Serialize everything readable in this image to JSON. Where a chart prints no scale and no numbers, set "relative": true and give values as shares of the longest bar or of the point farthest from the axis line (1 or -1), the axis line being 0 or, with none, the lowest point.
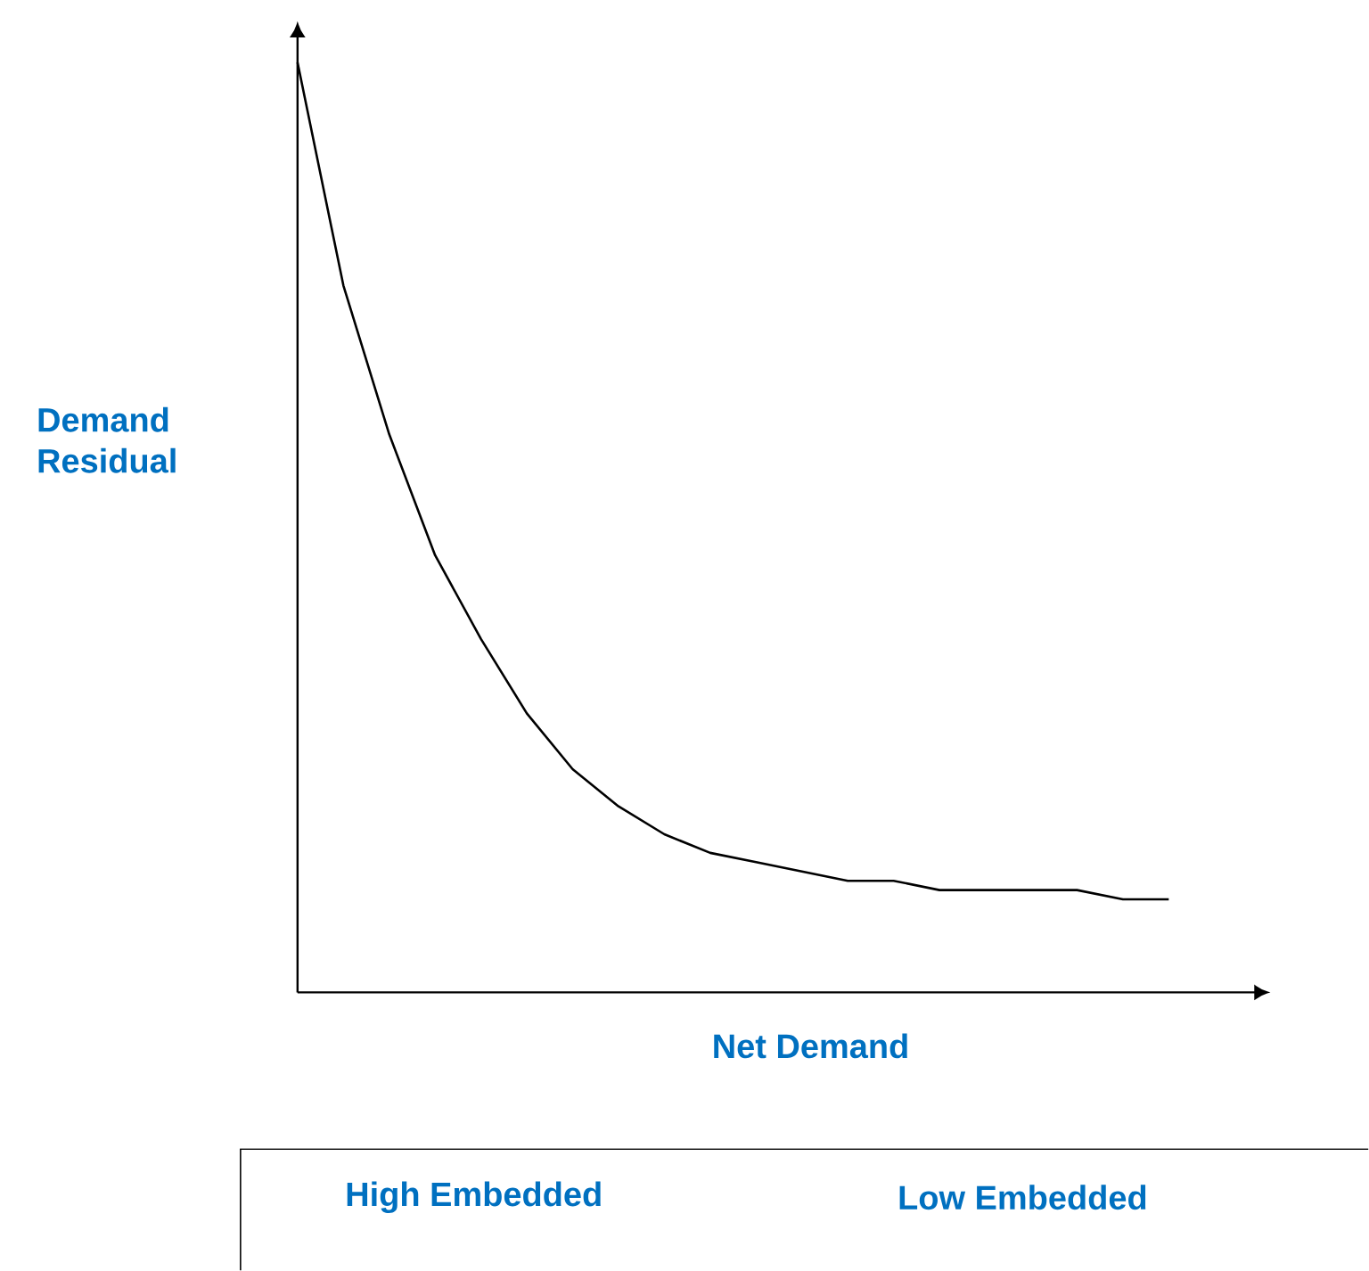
{
  "chart_data": {
    "type": "line",
    "relative": true,
    "xlabel": "Net Demand",
    "ylabel": "Demand Residual",
    "categories": [
      null,
      null,
      null,
      null,
      null,
      null,
      null,
      null,
      null,
      null,
      null,
      null,
      null,
      null,
      null,
      null,
      null,
      null,
      null,
      null
    ],
    "values": [
      1.0,
      0.76,
      0.6,
      0.47,
      0.38,
      0.3,
      0.24,
      0.2,
      0.17,
      0.15,
      0.14,
      0.13,
      0.12,
      0.12,
      0.11,
      0.11,
      0.11,
      0.11,
      0.1,
      0.1
    ],
    "color": "#000000",
    "marker": "none",
    "annotations": [
      "High Embedded",
      "Low Embedded"
    ]
  }
}
